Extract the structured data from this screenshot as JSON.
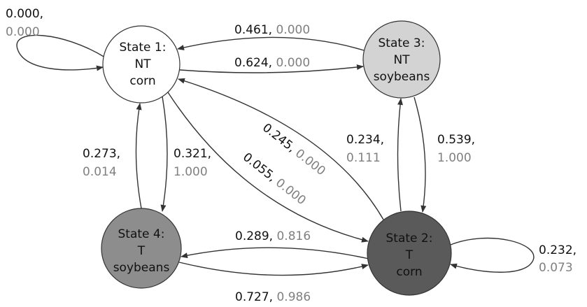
{
  "nodes": [
    {
      "lines": [
        "State 1:",
        "NT",
        "corn"
      ]
    },
    {
      "lines": [
        "State 2:",
        "T",
        "corn"
      ]
    },
    {
      "lines": [
        "State 3:",
        "NT",
        "soybeans"
      ]
    },
    {
      "lines": [
        "State 4:",
        "T",
        "soybeans"
      ]
    }
  ],
  "edges": [
    {
      "from": "State 1",
      "to": "State 1",
      "first": "0.000,",
      "second": "0.000"
    },
    {
      "from": "State 3",
      "to": "State 1",
      "first": "0.461,",
      "second": "0.000"
    },
    {
      "from": "State 1",
      "to": "State 3",
      "first": "0.624,",
      "second": "0.000"
    },
    {
      "from": "State 4",
      "to": "State 1",
      "first": "0.273,",
      "second": "0.014"
    },
    {
      "from": "State 1",
      "to": "State 4",
      "first": "0.321,",
      "second": "1.000"
    },
    {
      "from": "State 2",
      "to": "State 1",
      "first": "0.245,",
      "second": "0.000"
    },
    {
      "from": "State 1",
      "to": "State 2",
      "first": "0.055,",
      "second": "0.000"
    },
    {
      "from": "State 2",
      "to": "State 3",
      "first": "0.234,",
      "second": "0.111"
    },
    {
      "from": "State 3",
      "to": "State 2",
      "first": "0.539,",
      "second": "1.000"
    },
    {
      "from": "State 2",
      "to": "State 4",
      "first": "0.289,",
      "second": "0.816"
    },
    {
      "from": "State 4",
      "to": "State 2",
      "first": "0.727,",
      "second": "0.986"
    },
    {
      "from": "State 2",
      "to": "State 2",
      "first": "0.232,",
      "second": "0.073"
    }
  ]
}
